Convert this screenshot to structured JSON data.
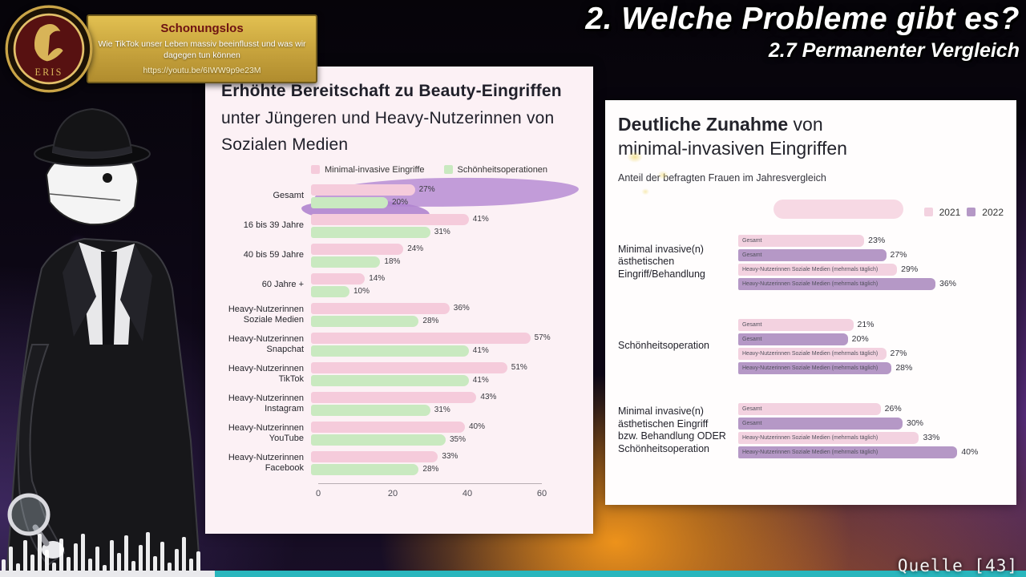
{
  "overlay": {
    "badge": {
      "emblem": "ERIS",
      "title": "Schonungslos",
      "description": "Wie TikTok unser Leben massiv beeinflusst und was wir dagegen tun können",
      "url": "https://youtu.be/6IWW9p9e23M"
    },
    "heading": {
      "line1": "2. Welche Probleme gibt es?",
      "line2": "2.7 Permanenter Vergleich"
    },
    "source_label": "Quelle [43]",
    "ticker_color": "#29b6bd",
    "waveform_heights": [
      14,
      30,
      9,
      38,
      20,
      46,
      26,
      10,
      40,
      17,
      34,
      46,
      15,
      30,
      7,
      38,
      22,
      44,
      12,
      32,
      48,
      18,
      36,
      10,
      27,
      42,
      15,
      24
    ]
  },
  "chart_data": [
    {
      "type": "bar",
      "orientation": "horizontal",
      "title_lines": [
        "Erhöhte Bereitschaft zu Beauty-Eingriffen",
        "unter Jüngeren und Heavy-Nutzerinnen von",
        "Sozialen Medien"
      ],
      "legend": [
        "Minimal-invasive Eingriffe",
        "Schönheitsoperationen"
      ],
      "colors": [
        "#f5cbdb",
        "#c9e9c0"
      ],
      "highlight_color": "#c29cd9",
      "categories": [
        "Gesamt",
        "16 bis 39 Jahre",
        "40 bis 59 Jahre",
        "60 Jahre +",
        "Heavy-Nutzerinnen Soziale Medien",
        "Heavy-Nutzerinnen Snapchat",
        "Heavy-Nutzerinnen TikTok",
        "Heavy-Nutzerinnen Instagram",
        "Heavy-Nutzerinnen YouTube",
        "Heavy-Nutzerinnen Facebook"
      ],
      "series": [
        {
          "name": "Minimal-invasive Eingriffe",
          "values": [
            27,
            41,
            24,
            14,
            36,
            57,
            51,
            43,
            40,
            33
          ]
        },
        {
          "name": "Schönheitsoperationen",
          "values": [
            20,
            31,
            18,
            10,
            28,
            41,
            41,
            31,
            35,
            28
          ]
        }
      ],
      "xticks": [
        0,
        20,
        40,
        60
      ],
      "xmax": 60,
      "grid": false,
      "legend_position": "top"
    },
    {
      "type": "bar",
      "orientation": "horizontal",
      "title_bold": "Deutliche Zunahme",
      "title_rest": " von",
      "title_line2": "minimal-invasiven Eingriffen",
      "subtitle": "Anteil der befragten Frauen im Jahresvergleich",
      "legend": [
        "2021",
        "2022"
      ],
      "colors": [
        "#f3d2e0",
        "#b598c6"
      ],
      "xmax": 42,
      "grid": false,
      "legend_position": "top",
      "groups": [
        {
          "label": "Minimal invasive(n) ästhetischen Eingriff/Behandlung",
          "bars": [
            {
              "label": "Gesamt",
              "year": "2021",
              "value": 23
            },
            {
              "label": "Gesamt",
              "year": "2022",
              "value": 27
            },
            {
              "label": "Heavy-Nutzerinnen Soziale Medien (mehrmals täglich)",
              "year": "2021",
              "value": 29
            },
            {
              "label": "Heavy-Nutzerinnen Soziale Medien (mehrmals täglich)",
              "year": "2022",
              "value": 36
            }
          ]
        },
        {
          "label": "Schönheitsoperation",
          "bars": [
            {
              "label": "Gesamt",
              "year": "2021",
              "value": 21
            },
            {
              "label": "Gesamt",
              "year": "2022",
              "value": 20
            },
            {
              "label": "Heavy-Nutzerinnen Soziale Medien (mehrmals täglich)",
              "year": "2021",
              "value": 27
            },
            {
              "label": "Heavy-Nutzerinnen Soziale Medien (mehrmals täglich)",
              "year": "2022",
              "value": 28
            }
          ]
        },
        {
          "label": "Minimal invasive(n) ästhetischen Eingriff bzw. Behandlung ODER Schönheitsoperation",
          "bars": [
            {
              "label": "Gesamt",
              "year": "2021",
              "value": 26
            },
            {
              "label": "Gesamt",
              "year": "2022",
              "value": 30
            },
            {
              "label": "Heavy-Nutzerinnen Soziale Medien (mehrmals täglich)",
              "year": "2021",
              "value": 33
            },
            {
              "label": "Heavy-Nutzerinnen Soziale Medien (mehrmals täglich)",
              "year": "2022",
              "value": 40
            }
          ]
        }
      ]
    }
  ]
}
